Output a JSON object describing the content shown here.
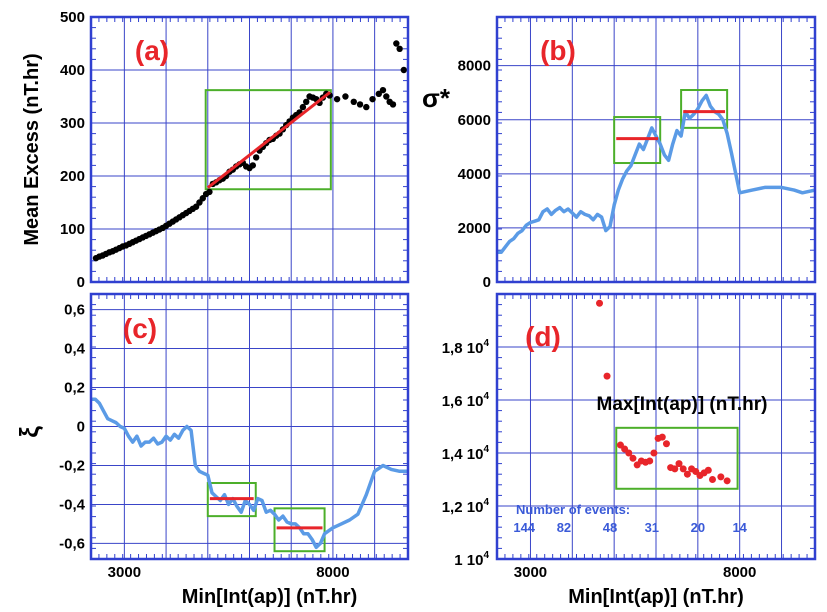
{
  "chart_data": [
    {
      "panel": "(a)",
      "type": "scatter",
      "ylabel": "Mean Excess (nT.hr)",
      "xlabel": "",
      "xlim": [
        2200,
        9800
      ],
      "ylim": [
        0,
        500
      ],
      "yticks": [
        0,
        100,
        200,
        300,
        400,
        500
      ],
      "ytick_labels": [
        "0",
        "100",
        "200",
        "300",
        "400",
        "500"
      ],
      "xgrid": [
        2200,
        3000,
        4000,
        5000,
        6000,
        7000,
        8000,
        9000,
        9800
      ],
      "colors": {
        "points": "#000000",
        "fit": "#e8252a",
        "box": "#4caf2a"
      },
      "points": {
        "x": [
          2320,
          2400,
          2480,
          2560,
          2640,
          2720,
          2800,
          2880,
          2960,
          3040,
          3120,
          3200,
          3280,
          3360,
          3440,
          3520,
          3600,
          3680,
          3760,
          3840,
          3920,
          4000,
          4080,
          4160,
          4240,
          4320,
          4400,
          4480,
          4560,
          4640,
          4720,
          4800,
          4880,
          4960,
          5040,
          5120,
          5200,
          5280,
          5360,
          5440,
          5520,
          5600,
          5680,
          5760,
          5840,
          5920,
          6000,
          6080,
          6160,
          6240,
          6320,
          6400,
          6480,
          6560,
          6640,
          6720,
          6800,
          6880,
          6960,
          7040,
          7120,
          7200,
          7280,
          7360,
          7440,
          7520,
          7600,
          7680,
          7760,
          7840,
          7920,
          8100,
          8300,
          8500,
          8650,
          8800,
          8950,
          9100,
          9200,
          9280,
          9360,
          9440,
          9520,
          9600,
          9700
        ],
        "y": [
          45,
          48,
          50,
          53,
          56,
          58,
          61,
          64,
          67,
          69,
          72,
          75,
          78,
          81,
          84,
          87,
          90,
          93,
          96,
          99,
          102,
          106,
          110,
          114,
          118,
          122,
          126,
          130,
          134,
          138,
          142,
          150,
          158,
          166,
          170,
          185,
          188,
          192,
          195,
          200,
          208,
          212,
          218,
          222,
          225,
          218,
          215,
          220,
          235,
          248,
          255,
          262,
          268,
          270,
          276,
          280,
          288,
          296,
          303,
          310,
          315,
          320,
          330,
          340,
          350,
          348,
          345,
          338,
          348,
          355,
          352,
          345,
          350,
          340,
          335,
          330,
          345,
          355,
          362,
          350,
          340,
          335,
          450,
          440,
          400
        ]
      },
      "fit": {
        "x": [
          5000,
          7930
        ],
        "y": [
          178,
          358
        ]
      },
      "box": {
        "x": [
          4950,
          7950
        ],
        "y": [
          175,
          362
        ]
      }
    },
    {
      "panel": "(b)",
      "type": "line",
      "ylabel": "σ*",
      "xlim": [
        2200,
        9800
      ],
      "ylim": [
        0,
        9800
      ],
      "yticks": [
        0,
        2000,
        4000,
        6000,
        8000
      ],
      "ytick_labels": [
        "0",
        "2000",
        "4000",
        "6000",
        "8000"
      ],
      "xgrid": [
        3000,
        4000,
        5000,
        6000,
        7000,
        8000,
        9000
      ],
      "colors": {
        "line": "#5b9be6",
        "mean": "#e8252a",
        "box": "#4caf2a"
      },
      "series": {
        "x": [
          2200,
          2300,
          2400,
          2500,
          2600,
          2700,
          2800,
          2900,
          3000,
          3100,
          3200,
          3300,
          3400,
          3500,
          3600,
          3700,
          3800,
          3900,
          4000,
          4100,
          4200,
          4300,
          4400,
          4500,
          4600,
          4700,
          4800,
          4900,
          5000,
          5100,
          5200,
          5300,
          5400,
          5500,
          5600,
          5700,
          5800,
          5900,
          6000,
          6100,
          6200,
          6300,
          6400,
          6500,
          6600,
          6700,
          6800,
          6900,
          7000,
          7100,
          7200,
          7300,
          7400,
          7500,
          7600,
          7700,
          7800,
          8000,
          8300,
          8600,
          8800,
          9000,
          9300,
          9500,
          9800
        ],
        "y": [
          1100,
          1100,
          1300,
          1500,
          1600,
          1800,
          1900,
          2100,
          2200,
          2250,
          2300,
          2600,
          2700,
          2500,
          2650,
          2750,
          2600,
          2700,
          2550,
          2400,
          2600,
          2500,
          2450,
          2300,
          2500,
          2400,
          1900,
          2050,
          2850,
          3400,
          3800,
          4100,
          4300,
          4700,
          5100,
          4900,
          5300,
          5700,
          5400,
          5100,
          4700,
          4500,
          5100,
          5600,
          5400,
          6300,
          6050,
          6200,
          6400,
          6700,
          6900,
          6500,
          6300,
          6200,
          6000,
          5500,
          4800,
          3300,
          3400,
          3500,
          3500,
          3500,
          3400,
          3300,
          3400
        ]
      },
      "means": [
        {
          "x": [
            5050,
            6050
          ],
          "y": 5300
        },
        {
          "x": [
            6650,
            7650
          ],
          "y": 6300
        }
      ],
      "boxes": [
        {
          "x": [
            5000,
            6100
          ],
          "y": [
            4400,
            6100
          ]
        },
        {
          "x": [
            6600,
            7700
          ],
          "y": [
            5700,
            7100
          ]
        }
      ]
    },
    {
      "panel": "(c)",
      "type": "line",
      "ylabel": "ξ",
      "xlabel": "Min[Int(ap)]  (nT.hr)",
      "xlim": [
        2200,
        9800
      ],
      "ylim": [
        -0.68,
        0.68
      ],
      "yticks": [
        -0.6,
        -0.4,
        -0.2,
        0,
        0.2,
        0.4,
        0.6
      ],
      "ytick_labels": [
        "-0,6",
        "-0,4",
        "-0,2",
        "0",
        "0,2",
        "0,4",
        "0,6"
      ],
      "xticks": [
        3000,
        8000
      ],
      "xtick_labels": [
        "3000",
        "8000"
      ],
      "xgrid": [
        3000,
        4000,
        5000,
        6000,
        7000,
        8000,
        9000
      ],
      "colors": {
        "line": "#5b9be6",
        "mean": "#e8252a",
        "box": "#4caf2a"
      },
      "series": {
        "x": [
          2200,
          2300,
          2400,
          2500,
          2600,
          2700,
          2800,
          2900,
          3000,
          3100,
          3200,
          3300,
          3400,
          3500,
          3600,
          3700,
          3800,
          3900,
          4000,
          4100,
          4200,
          4300,
          4400,
          4500,
          4600,
          4700,
          4800,
          4900,
          5000,
          5100,
          5200,
          5300,
          5400,
          5500,
          5600,
          5700,
          5800,
          5900,
          6000,
          6100,
          6200,
          6300,
          6400,
          6500,
          6600,
          6700,
          6800,
          6900,
          7000,
          7100,
          7200,
          7300,
          7400,
          7500,
          7600,
          7700,
          7800,
          8000,
          8200,
          8400,
          8600,
          8800,
          9000,
          9200,
          9400,
          9600,
          9800
        ],
        "y": [
          0.14,
          0.14,
          0.12,
          0.08,
          0.04,
          0.03,
          0.02,
          0.0,
          -0.01,
          -0.05,
          -0.08,
          -0.05,
          -0.1,
          -0.08,
          -0.08,
          -0.06,
          -0.09,
          -0.08,
          -0.05,
          -0.07,
          -0.04,
          -0.06,
          -0.02,
          0.0,
          -0.02,
          -0.2,
          -0.23,
          -0.24,
          -0.25,
          -0.34,
          -0.36,
          -0.38,
          -0.35,
          -0.4,
          -0.37,
          -0.41,
          -0.44,
          -0.38,
          -0.4,
          -0.43,
          -0.37,
          -0.38,
          -0.44,
          -0.43,
          -0.45,
          -0.48,
          -0.46,
          -0.49,
          -0.5,
          -0.5,
          -0.52,
          -0.55,
          -0.55,
          -0.58,
          -0.62,
          -0.6,
          -0.55,
          -0.52,
          -0.5,
          -0.48,
          -0.45,
          -0.35,
          -0.23,
          -0.2,
          -0.22,
          -0.23,
          -0.23
        ]
      },
      "means": [
        {
          "x": [
            5050,
            6100
          ],
          "y": -0.37
        },
        {
          "x": [
            6650,
            7750
          ],
          "y": -0.52
        }
      ],
      "boxes": [
        {
          "x": [
            5000,
            6150
          ],
          "y": [
            -0.46,
            -0.29
          ]
        },
        {
          "x": [
            6600,
            7800
          ],
          "y": [
            -0.64,
            -0.42
          ]
        }
      ]
    },
    {
      "panel": "(d)",
      "type": "scatter",
      "xlabel": "Min[Int(ap)]  (nT.hr)",
      "annotation": "Max[Int(ap)] (nT.hr)",
      "xlim": [
        2200,
        9800
      ],
      "ylim": [
        10000,
        20000
      ],
      "ytick_mantissas": [
        "1",
        "1,2",
        "1,4",
        "1,6",
        "1,8"
      ],
      "ytick_exponent": "4",
      "yticks": [
        10000,
        12000,
        14000,
        16000,
        18000
      ],
      "xticks": [
        3000,
        8000
      ],
      "xtick_labels": [
        "3000",
        "8000"
      ],
      "xgrid": [
        3000,
        4000,
        5000,
        6000,
        7000,
        8000,
        9000
      ],
      "colors": {
        "points": "#e8252a",
        "box": "#4caf2a",
        "events": "#3a5ad8"
      },
      "points": {
        "x": [
          4650,
          4830,
          5150,
          5250,
          5350,
          5450,
          5550,
          5650,
          5750,
          5850,
          5950,
          6050,
          6150,
          6250,
          6350,
          6450,
          6550,
          6650,
          6750,
          6850,
          6950,
          7050,
          7150,
          7250,
          7350,
          7550,
          7700
        ],
        "y": [
          19650,
          16900,
          14300,
          14150,
          14000,
          13800,
          13550,
          13700,
          13650,
          13700,
          14000,
          14550,
          14600,
          14350,
          13450,
          13400,
          13600,
          13400,
          13200,
          13400,
          13300,
          13150,
          13250,
          13350,
          13000,
          13100,
          12950
        ]
      },
      "box": {
        "x": [
          5050,
          7950
        ],
        "y": [
          12650,
          14950
        ]
      },
      "events_label": "Number of events:",
      "events": [
        {
          "x": 2850,
          "label": "144"
        },
        {
          "x": 3800,
          "label": "82"
        },
        {
          "x": 4900,
          "label": "48"
        },
        {
          "x": 5900,
          "label": "31"
        },
        {
          "x": 7000,
          "label": "20"
        },
        {
          "x": 8000,
          "label": "14"
        }
      ]
    }
  ]
}
